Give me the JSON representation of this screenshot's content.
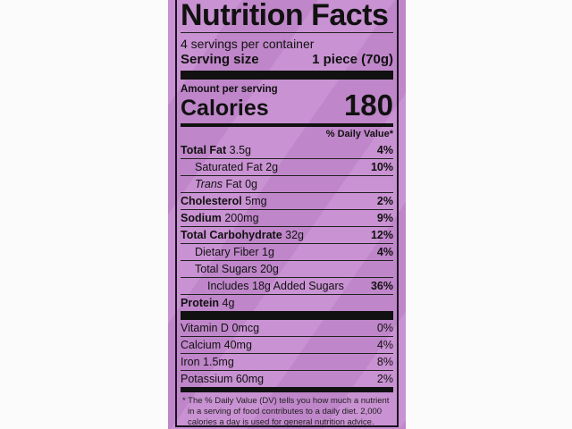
{
  "title": "Nutrition Facts",
  "servings_per_container": "4 servings per container",
  "serving_size_label": "Serving size",
  "serving_size_value": "1 piece (70g)",
  "amount_per_serving": "Amount per serving",
  "calories_label": "Calories",
  "calories_value": "180",
  "daily_value_header": "% Daily Value*",
  "nutrients": [
    {
      "name": "Total Fat",
      "amount": "3.5g",
      "dv": "4%"
    },
    {
      "name": "Saturated Fat",
      "amount": "2g",
      "dv": "10%"
    },
    {
      "name": "Trans",
      "name_suffix": "Fat",
      "amount": "0g",
      "dv": ""
    },
    {
      "name": "Cholesterol",
      "amount": "5mg",
      "dv": "2%"
    },
    {
      "name": "Sodium",
      "amount": "200mg",
      "dv": "9%"
    },
    {
      "name": "Total Carbohydrate",
      "amount": "32g",
      "dv": "12%"
    },
    {
      "name": "Dietary Fiber",
      "amount": "1g",
      "dv": "4%"
    },
    {
      "name": "Total Sugars",
      "amount": "20g",
      "dv": ""
    },
    {
      "name": "Includes 18g Added Sugars",
      "amount": "",
      "dv": "36%"
    },
    {
      "name": "Protein",
      "amount": "4g",
      "dv": ""
    }
  ],
  "vitamins": [
    {
      "name": "Vitamin D",
      "amount": "0mcg",
      "dv": "0%"
    },
    {
      "name": "Calcium",
      "amount": "40mg",
      "dv": "4%"
    },
    {
      "name": "Iron",
      "amount": "1.5mg",
      "dv": "8%"
    },
    {
      "name": "Potassium",
      "amount": "60mg",
      "dv": "2%"
    }
  ],
  "footnote": "* The % Daily Value (DV) tells you how much a nutrient in a serving of food contributes to a daily diet. 2,000 calories a day is used for general nutrition advice.",
  "colors": {
    "panel": "#c992d2",
    "ink": "#111111"
  }
}
